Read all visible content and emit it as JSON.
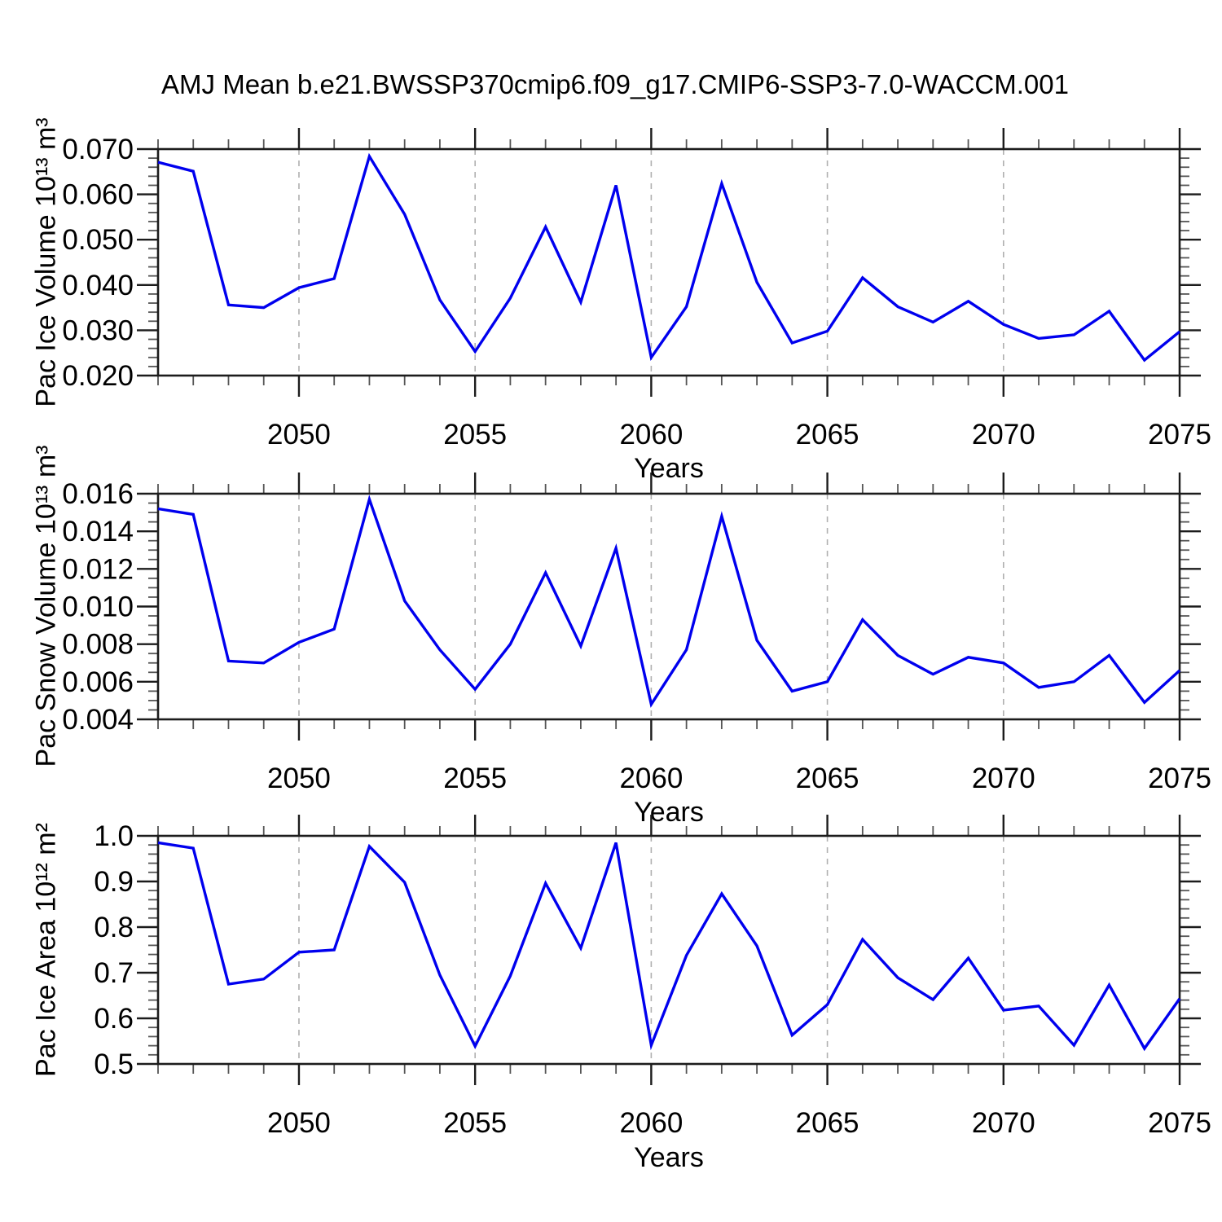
{
  "title": "AMJ Mean b.e21.BWSSP370cmip6.f09_g17.CMIP6-SSP3-7.0-WACCM.001",
  "line_color": "#0000ee",
  "grid_color": "#b0b0b0",
  "axis_color": "#1c1c1c",
  "chart_data": [
    {
      "type": "line",
      "id": "pac-ice-volume",
      "ylabel": "Pac Ice Volume 10¹³ m³",
      "xlabel": "Years",
      "xlim": [
        2046,
        2075
      ],
      "ylim": [
        0.02,
        0.07
      ],
      "y_major_step": 0.01,
      "y_minor_step": 0.002,
      "x_minor_step": 1,
      "grid_x": [
        2050,
        2055,
        2060,
        2065,
        2070
      ],
      "x_tick_values": [
        2050,
        2055,
        2060,
        2065,
        2070,
        2075
      ],
      "x_tick_labels": [
        "2050",
        "2055",
        "2060",
        "2065",
        "2070",
        "2075"
      ],
      "y_tick_values": [
        0.02,
        0.03,
        0.04,
        0.05,
        0.06,
        0.07
      ],
      "y_tick_labels": [
        "0.020",
        "0.030",
        "0.040",
        "0.050",
        "0.060",
        "0.070"
      ],
      "x": [
        2046,
        2047,
        2048,
        2049,
        2050,
        2051,
        2052,
        2053,
        2054,
        2055,
        2056,
        2057,
        2058,
        2059,
        2060,
        2061,
        2062,
        2063,
        2064,
        2065,
        2066,
        2067,
        2068,
        2069,
        2070,
        2071,
        2072,
        2073,
        2074,
        2075
      ],
      "values": [
        0.0671,
        0.0651,
        0.0356,
        0.035,
        0.0394,
        0.0414,
        0.0684,
        0.0556,
        0.0367,
        0.0253,
        0.0371,
        0.0528,
        0.0362,
        0.062,
        0.024,
        0.0352,
        0.0624,
        0.0406,
        0.0272,
        0.0298,
        0.0416,
        0.0352,
        0.0318,
        0.0364,
        0.0313,
        0.0282,
        0.029,
        0.0342,
        0.0234,
        0.0297
      ]
    },
    {
      "type": "line",
      "id": "pac-snow-volume",
      "ylabel": "Pac Snow Volume 10¹³ m³",
      "xlabel": "Years",
      "xlim": [
        2046,
        2075
      ],
      "ylim": [
        0.004,
        0.016
      ],
      "y_major_step": 0.002,
      "y_minor_step": 0.0005,
      "x_minor_step": 1,
      "grid_x": [
        2050,
        2055,
        2060,
        2065,
        2070
      ],
      "x_tick_values": [
        2050,
        2055,
        2060,
        2065,
        2070,
        2075
      ],
      "x_tick_labels": [
        "2050",
        "2055",
        "2060",
        "2065",
        "2070",
        "2075"
      ],
      "y_tick_values": [
        0.004,
        0.006,
        0.008,
        0.01,
        0.012,
        0.014,
        0.016
      ],
      "y_tick_labels": [
        "0.004",
        "0.006",
        "0.008",
        "0.010",
        "0.012",
        "0.014",
        "0.016"
      ],
      "x": [
        2046,
        2047,
        2048,
        2049,
        2050,
        2051,
        2052,
        2053,
        2054,
        2055,
        2056,
        2057,
        2058,
        2059,
        2060,
        2061,
        2062,
        2063,
        2064,
        2065,
        2066,
        2067,
        2068,
        2069,
        2070,
        2071,
        2072,
        2073,
        2074,
        2075
      ],
      "values": [
        0.0152,
        0.0149,
        0.0071,
        0.007,
        0.0081,
        0.0088,
        0.0157,
        0.0103,
        0.0077,
        0.0056,
        0.008,
        0.0118,
        0.0079,
        0.0131,
        0.0048,
        0.0077,
        0.0148,
        0.0082,
        0.0055,
        0.006,
        0.0093,
        0.0074,
        0.0064,
        0.0073,
        0.007,
        0.0057,
        0.006,
        0.0074,
        0.0049,
        0.0066
      ]
    },
    {
      "type": "line",
      "id": "pac-ice-area",
      "ylabel": "Pac Ice Area 10¹² m²",
      "xlabel": "Years",
      "xlim": [
        2046,
        2075
      ],
      "ylim": [
        0.5,
        1.0
      ],
      "y_major_step": 0.1,
      "y_minor_step": 0.02,
      "x_minor_step": 1,
      "grid_x": [
        2050,
        2055,
        2060,
        2065,
        2070
      ],
      "x_tick_values": [
        2050,
        2055,
        2060,
        2065,
        2070,
        2075
      ],
      "x_tick_labels": [
        "2050",
        "2055",
        "2060",
        "2065",
        "2070",
        "2075"
      ],
      "y_tick_values": [
        0.5,
        0.6,
        0.7,
        0.8,
        0.9,
        1.0
      ],
      "y_tick_labels": [
        "0.5",
        "0.6",
        "0.7",
        "0.8",
        "0.9",
        "1.0"
      ],
      "x": [
        2046,
        2047,
        2048,
        2049,
        2050,
        2051,
        2052,
        2053,
        2054,
        2055,
        2056,
        2057,
        2058,
        2059,
        2060,
        2061,
        2062,
        2063,
        2064,
        2065,
        2066,
        2067,
        2068,
        2069,
        2070,
        2071,
        2072,
        2073,
        2074,
        2075
      ],
      "values": [
        0.985,
        0.973,
        0.675,
        0.686,
        0.745,
        0.75,
        0.977,
        0.898,
        0.695,
        0.539,
        0.693,
        0.896,
        0.754,
        0.985,
        0.541,
        0.738,
        0.873,
        0.759,
        0.563,
        0.63,
        0.773,
        0.689,
        0.641,
        0.732,
        0.618,
        0.627,
        0.541,
        0.673,
        0.534,
        0.643
      ]
    }
  ]
}
